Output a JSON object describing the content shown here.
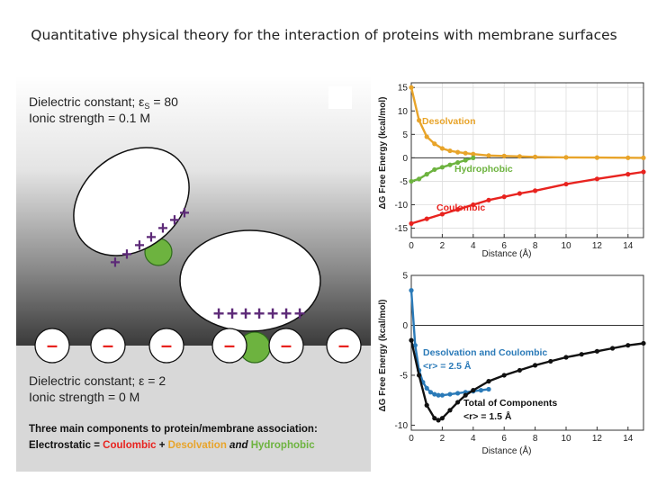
{
  "slide_title": "Quantitative physical theory for the interaction of proteins with membrane surfaces",
  "schematic": {
    "upper_medium": {
      "line1_prefix": "Dielectric constant; ",
      "line1_symbol": "ε",
      "line1_subscript": "S",
      "line1_value": " = 80",
      "line2": "Ionic strength = 0.1 M"
    },
    "lower_medium": {
      "line1_prefix": "Dielectric constant; ",
      "line1_symbol": "ε",
      "line1_value": " = 2",
      "line2": "Ionic strength = 0 M"
    },
    "summary": {
      "line1": "Three main components to protein/membrane association:",
      "electrostatic": "Electrostatic",
      "eq": " = ",
      "coulombic": "Coulombic",
      "plus": " + ",
      "desolvation": "Desolvation",
      "and": " and ",
      "hydrophobic": "Hydrophobic"
    },
    "protein1_charges": [
      "+",
      "+",
      "+",
      "+",
      "+",
      "+",
      "+"
    ],
    "protein2_charges": [
      "+",
      "+",
      "+",
      "+",
      "+",
      "+",
      "+"
    ],
    "membrane_charges": [
      "–",
      "–",
      "–",
      "–",
      "–",
      "–"
    ],
    "colors": {
      "protein": "#ffffff",
      "membrane_charge": "#e8231f",
      "protein_charge": "#5d2a78",
      "hydrophobic_patch": "#6db33f",
      "coulombic_text": "#e8231f",
      "desolvation_text": "#e8a42a",
      "hydrophobic_text": "#6db33f"
    }
  },
  "chart_data": [
    {
      "type": "line",
      "xlabel": "Distance (Å)",
      "ylabel": "ΔG Free Energy (kcal/mol)",
      "xlim": [
        0,
        15
      ],
      "ylim": [
        -17,
        16
      ],
      "x_ticks": [
        "0",
        "2",
        "4",
        "6",
        "8",
        "10",
        "12",
        "14"
      ],
      "y_ticks": [
        "15",
        "10",
        "5",
        "0",
        "-5",
        "-10",
        "-15"
      ],
      "grid": true,
      "series": [
        {
          "name": "Desolvation",
          "color": "#e8a42a",
          "x": [
            0,
            0.5,
            1,
            1.5,
            2,
            2.5,
            3,
            3.5,
            4,
            5,
            6,
            7,
            8,
            10,
            12,
            14,
            15
          ],
          "y": [
            15,
            8,
            4.5,
            3,
            2,
            1.5,
            1.2,
            1,
            0.8,
            0.5,
            0.4,
            0.3,
            0.2,
            0.1,
            0.05,
            0.02,
            0
          ]
        },
        {
          "name": "Hydrophobic",
          "color": "#6db33f",
          "x": [
            0,
            0.5,
            1,
            1.5,
            2,
            2.5,
            3,
            3.5,
            4
          ],
          "y": [
            -5,
            -4.5,
            -3.5,
            -2.5,
            -2,
            -1.5,
            -1,
            -0.5,
            0
          ]
        },
        {
          "name": "Coulombic",
          "color": "#e8231f",
          "x": [
            0,
            1,
            2,
            3,
            4,
            5,
            6,
            7,
            8,
            10,
            12,
            14,
            15
          ],
          "y": [
            -14,
            -13,
            -12,
            -11,
            -10,
            -9,
            -8.3,
            -7.6,
            -7,
            -5.6,
            -4.5,
            -3.5,
            -3
          ]
        }
      ],
      "series_labels": [
        "Desolvation",
        "Hydrophobic",
        "Coulombic"
      ]
    },
    {
      "type": "line",
      "xlabel": "Distance (Å)",
      "ylabel": "ΔG Free Energy (kcal/mol)",
      "xlim": [
        0,
        15
      ],
      "ylim": [
        -10.5,
        5
      ],
      "x_ticks": [
        "0",
        "2",
        "4",
        "6",
        "8",
        "10",
        "12",
        "14"
      ],
      "y_ticks": [
        "5",
        "0",
        "-5",
        "-10"
      ],
      "grid": false,
      "series": [
        {
          "name": "Desolvation and Coulombic",
          "color": "#2a7ab8",
          "x": [
            0,
            0.25,
            0.5,
            0.75,
            1,
            1.25,
            1.5,
            1.75,
            2,
            2.5,
            3,
            3.5,
            4,
            4.5,
            5
          ],
          "y": [
            3.5,
            -2,
            -4.5,
            -5.7,
            -6.3,
            -6.7,
            -6.9,
            -7,
            -7,
            -6.9,
            -6.8,
            -6.7,
            -6.6,
            -6.5,
            -6.4
          ]
        },
        {
          "name": "Total of Components",
          "color": "#111111",
          "x": [
            0,
            0.5,
            1,
            1.5,
            1.75,
            2,
            2.5,
            3,
            3.5,
            4,
            5,
            6,
            7,
            8,
            9,
            10,
            11,
            12,
            13,
            14,
            15
          ],
          "y": [
            -1.5,
            -5,
            -8,
            -9.3,
            -9.5,
            -9.3,
            -8.5,
            -7.7,
            -7,
            -6.5,
            -5.6,
            -5,
            -4.5,
            -4,
            -3.6,
            -3.2,
            -2.9,
            -2.6,
            -2.3,
            -2,
            -1.8
          ]
        }
      ],
      "series_labels": [
        "Desolvation and Coulombic",
        "Total of Components"
      ],
      "annotations": [
        "<r> = 2.5 Å",
        "<r> = 1.5 Å"
      ]
    }
  ]
}
